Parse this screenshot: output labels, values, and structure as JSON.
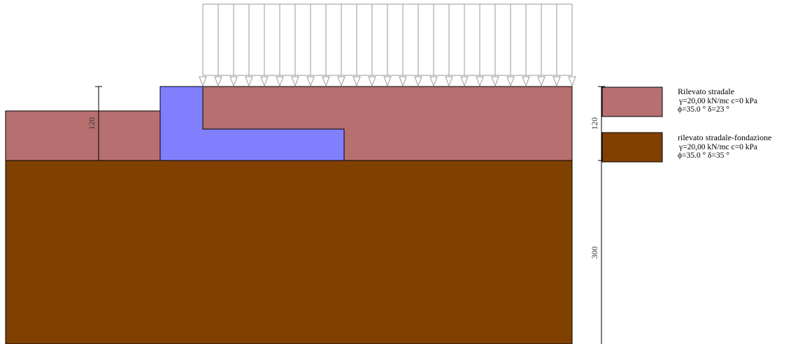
{
  "colors": {
    "embankment": "#b76f6f",
    "foundation": "#804000",
    "wall": "#8080ff",
    "outline": "#000000",
    "load_lines": "#999999"
  },
  "dimensions": {
    "left_height": "120",
    "right_upper": "120",
    "right_lower": "300"
  },
  "legend": {
    "items": [
      {
        "id": "rilevato",
        "color": "#b76f6f",
        "title": "Rilevato stradale",
        "line1": "γ=20,00 kN/mc c=0 kPa",
        "line2": "ϕ=35.0 °  δ=23 °"
      },
      {
        "id": "fondazione",
        "color": "#804000",
        "title": "rilevato stradale-fondazione",
        "line1": "γ=20,00 kN/mc c=0 kPa",
        "line2": "ϕ=35.0 °  δ=35 °"
      }
    ]
  }
}
